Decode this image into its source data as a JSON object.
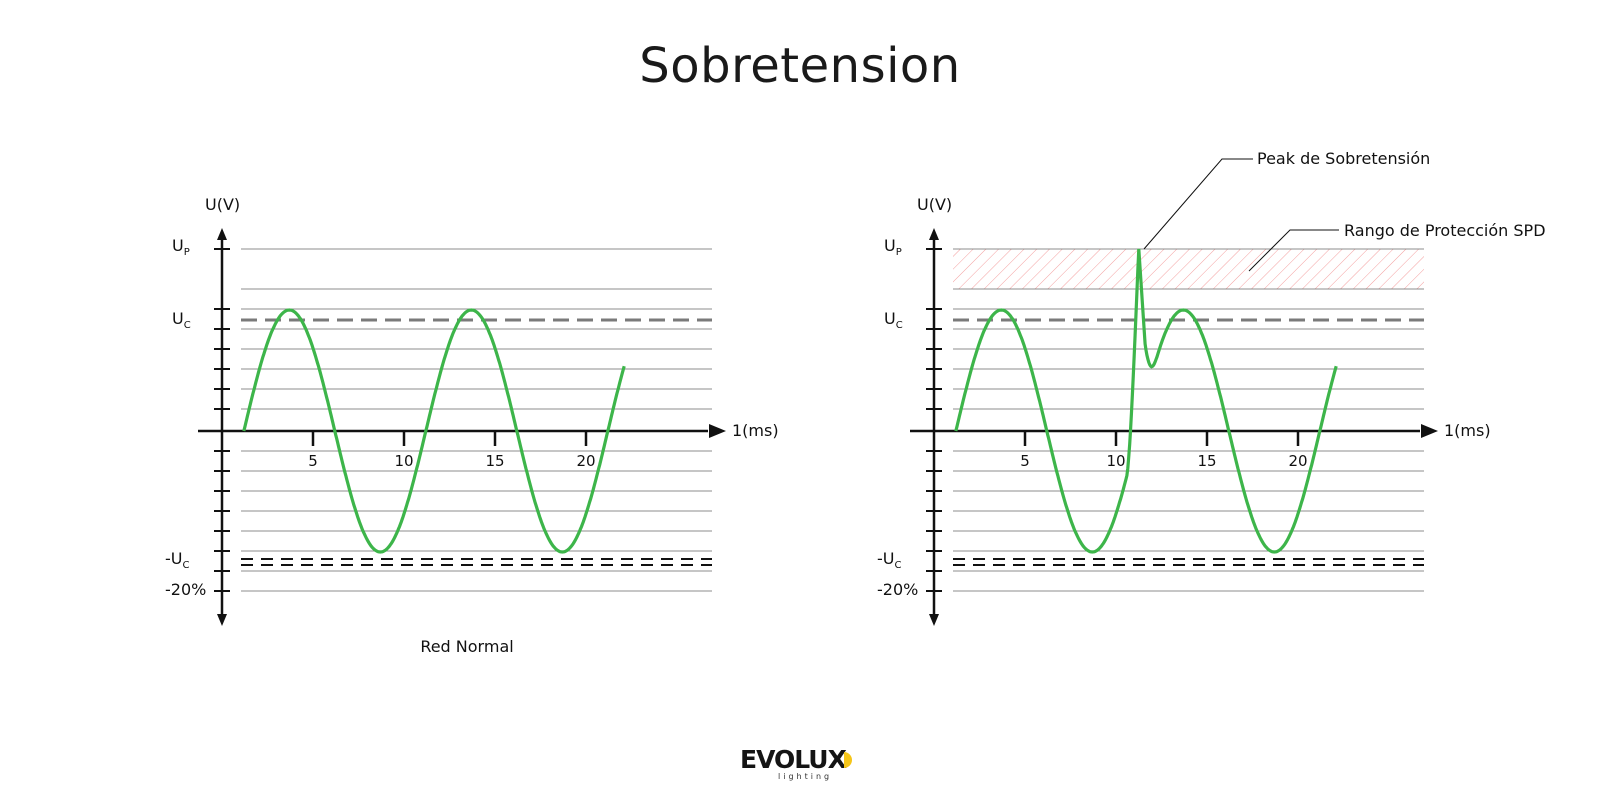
{
  "title": "Sobretension",
  "colors": {
    "wave": "#3db54a",
    "uc_dashed": "#7a7a7a",
    "neg_dashed": "#111111",
    "grid": "#555555",
    "spd_hatch": "#f4a0a0"
  },
  "panels": [
    {
      "id": "normal",
      "caption": "Red Normal",
      "y_axis_label": "U(V)",
      "x_axis_label": "1(ms)",
      "x_ticks": [
        "5",
        "10",
        "15",
        "20"
      ],
      "level_labels": {
        "up": "U",
        "up_sub": "P",
        "uc": "U",
        "uc_sub": "C",
        "neg_uc": "-U",
        "neg_uc_sub": "C",
        "neg20": "-20%"
      },
      "has_spike": false
    },
    {
      "id": "surge",
      "caption": "",
      "y_axis_label": "U(V)",
      "x_axis_label": "1(ms)",
      "x_ticks": [
        "5",
        "10",
        "15",
        "20"
      ],
      "level_labels": {
        "up": "U",
        "up_sub": "P",
        "uc": "U",
        "uc_sub": "C",
        "neg_uc": "-U",
        "neg_uc_sub": "C",
        "neg20": "-20%"
      },
      "has_spike": true,
      "annotations": {
        "peak": "Peak de Sobretensión",
        "spd_range": "Rango de Protección SPD"
      }
    }
  ],
  "logo": {
    "word": "EVOLUX",
    "sub": "lighting",
    "icon": "evolux-logo-icon"
  }
}
